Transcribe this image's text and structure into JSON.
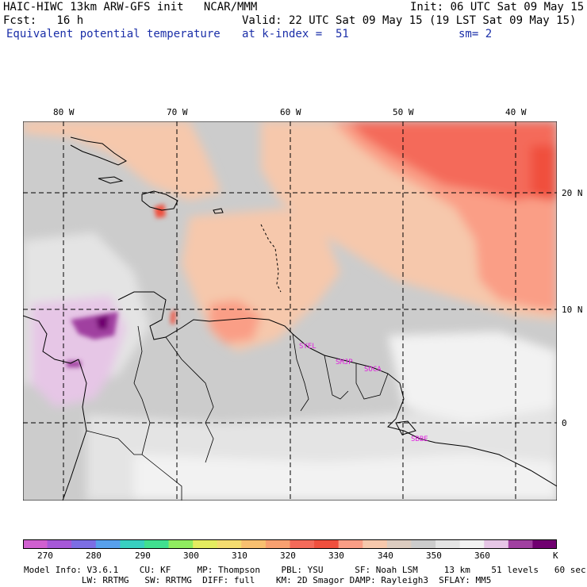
{
  "header": {
    "line1_left": "HAIC-HIWC 13km ARW-GFS init   NCAR/MMM",
    "line1_right": "Init: 06 UTC Sat 09 May 15",
    "line2_left": "Fcst:   16 h",
    "line2_right": "Valid: 22 UTC Sat 09 May 15 (19 LST Sat 09 May 15)",
    "line3_left": "Equivalent potential temperature",
    "line3_mid": "at k-index =  51",
    "line3_right": "sm= 2"
  },
  "map": {
    "lon_labels": [
      "80 W",
      "70 W",
      "60 W",
      "50 W",
      "40 W"
    ],
    "lat_labels": [
      "20 N",
      "10 N",
      "0"
    ],
    "stations": [
      "SYEL",
      "SMJP",
      "SOCA",
      "SBBE"
    ]
  },
  "colorbar": {
    "labels": [
      "270",
      "280",
      "290",
      "300",
      "310",
      "320",
      "330",
      "340",
      "350",
      "360"
    ],
    "unit": "K",
    "colors": [
      "#d060d0",
      "#a658d8",
      "#7c6ee4",
      "#58a0ec",
      "#38d0c0",
      "#40e090",
      "#90ec60",
      "#e4ec60",
      "#f4dc70",
      "#f8c070",
      "#f8a070",
      "#f46a5a",
      "#f0503e",
      "#fa9e86",
      "#f6c8ac",
      "#dcccc0",
      "#cccccc",
      "#e4e4e4",
      "#f2f2f2",
      "#e6c6e6",
      "#a040a0",
      "#700070"
    ]
  },
  "model_info": {
    "line1": "Model Info: V3.6.1    CU: KF     MP: Thompson    PBL: YSU      SF: Noah LSM     13 km    51 levels   60 sec",
    "line2": "           LW: RRTMG   SW: RRTMG  DIFF: full    KM: 2D Smagor DAMP: Rayleigh3  SFLAY: MM5"
  }
}
